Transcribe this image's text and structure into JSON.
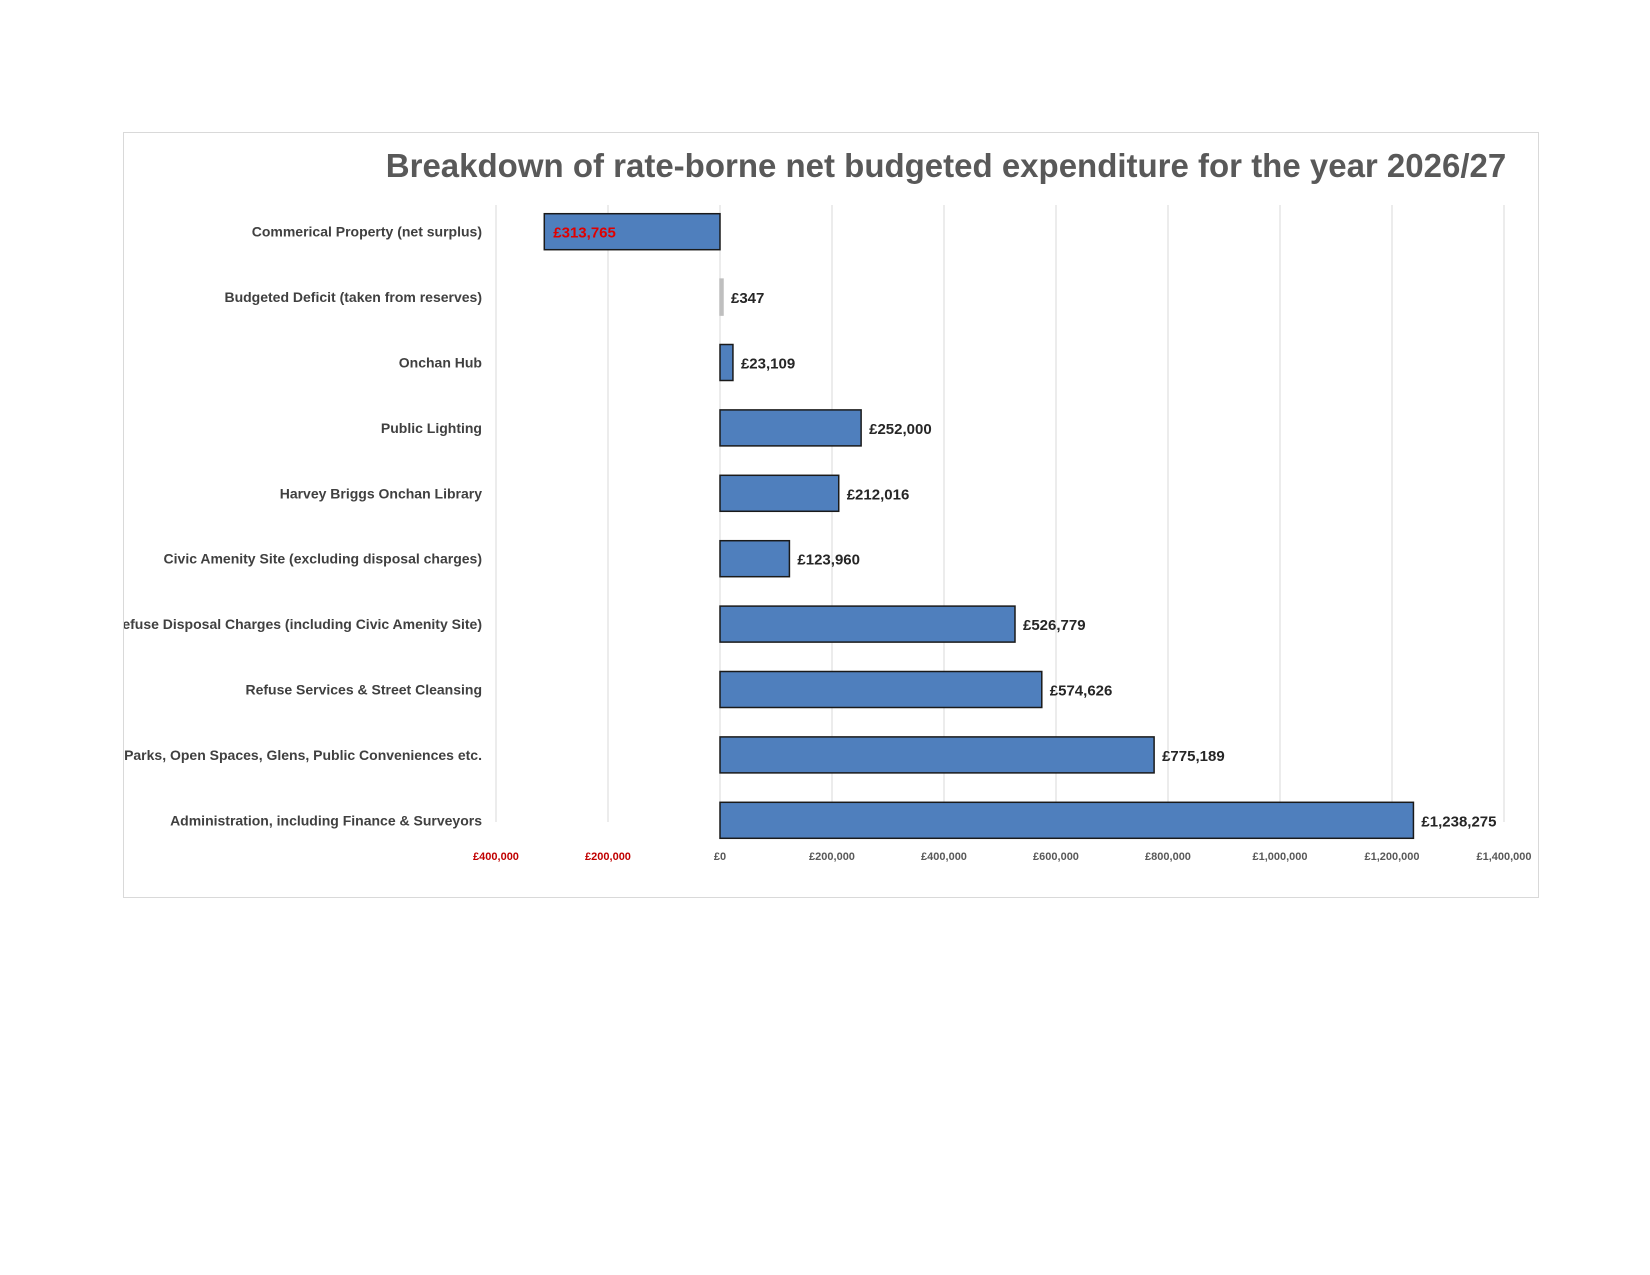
{
  "chart_data": {
    "type": "bar",
    "orientation": "horizontal",
    "title": "Breakdown of rate-borne net budgeted expenditure for the year 2026/27",
    "xlabel": "",
    "ylabel": "",
    "xlim": [
      -400000,
      1400000
    ],
    "grid": true,
    "legend": "none",
    "x_ticks": [
      {
        "value": -400000,
        "label": "£400,000"
      },
      {
        "value": -200000,
        "label": "£200,000"
      },
      {
        "value": 0,
        "label": "£0"
      },
      {
        "value": 200000,
        "label": "£200,000"
      },
      {
        "value": 400000,
        "label": "£400,000"
      },
      {
        "value": 600000,
        "label": "£600,000"
      },
      {
        "value": 800000,
        "label": "£800,000"
      },
      {
        "value": 1000000,
        "label": "£1,000,000"
      },
      {
        "value": 1200000,
        "label": "£1,200,000"
      },
      {
        "value": 1400000,
        "label": "£1,400,000"
      }
    ],
    "categories": [
      "Commerical Property (net surplus)",
      "Budgeted Deficit (taken from reserves)",
      "Onchan Hub",
      "Public Lighting",
      "Harvey Briggs Onchan Library",
      "Civic Amenity Site (excluding disposal charges)",
      "Refuse Disposal Charges (including Civic Amenity Site)",
      "Refuse Services & Street Cleansing",
      "Parks, Open Spaces, Glens, Public Conveniences etc.",
      "Administration, including Finance & Surveyors"
    ],
    "values": [
      -313765,
      347,
      23109,
      252000,
      212016,
      123960,
      526779,
      574626,
      775189,
      1238275
    ],
    "data_labels": [
      "£313,765",
      "£347",
      "£23,109",
      "£252,000",
      "£212,016",
      "£123,960",
      "£526,779",
      "£574,626",
      "£775,189",
      "£1,238,275"
    ],
    "colors": {
      "bar_fill": "#4f7fbd",
      "bar_outline": "#1a1a1a",
      "negative_text": "#e00000",
      "negative_tick": "#c00000",
      "gridline": "#d9d9d9",
      "title_text": "#595959"
    }
  }
}
